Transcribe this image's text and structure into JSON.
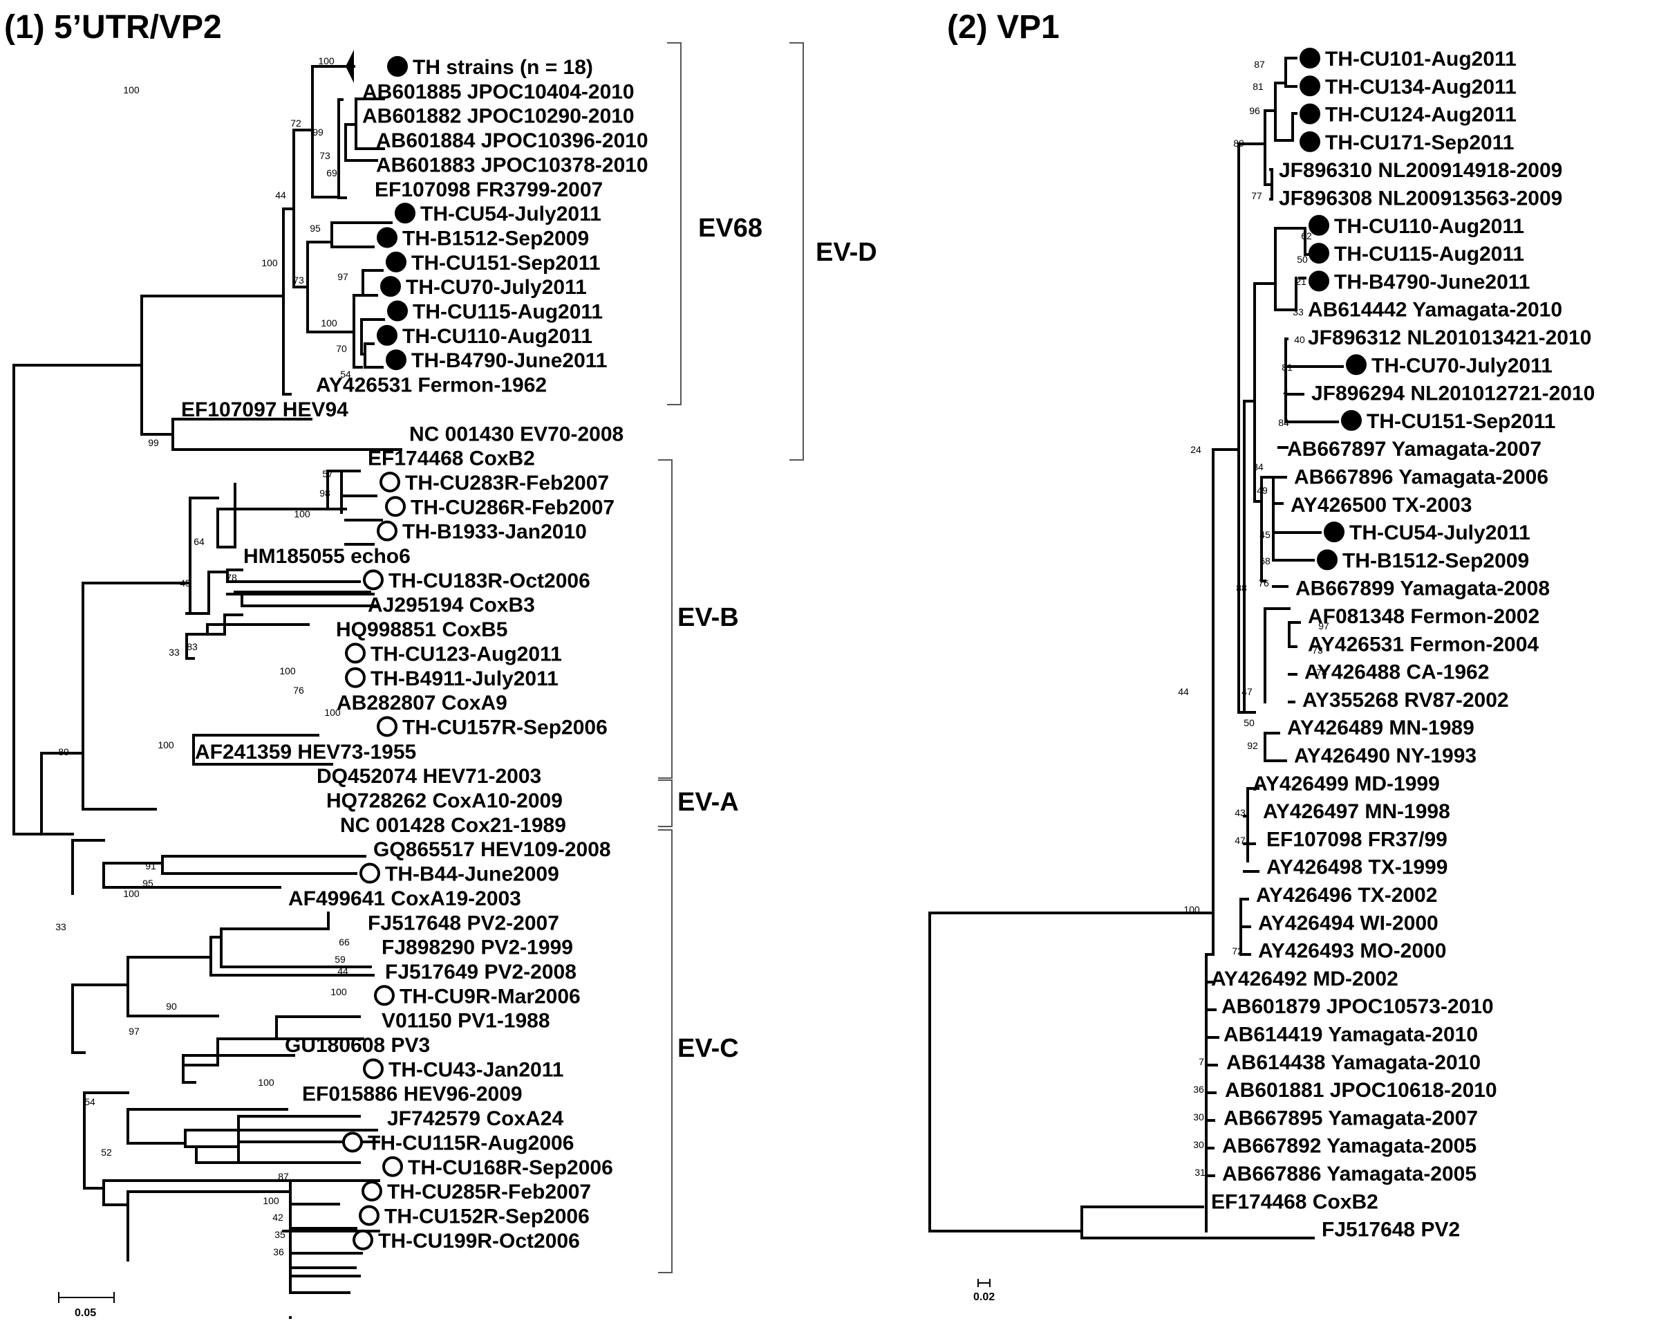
{
  "panels": [
    {
      "title": "(1) 5’UTR/VP2",
      "scale_label": "0.05",
      "tips": [
        {
          "label": "TH strains (n = 18)",
          "marker": "filled"
        },
        {
          "label": "AB601885 JPOC10404-2010",
          "marker": "none"
        },
        {
          "label": "AB601882 JPOC10290-2010",
          "marker": "none"
        },
        {
          "label": "AB601884 JPOC10396-2010",
          "marker": "none"
        },
        {
          "label": "AB601883 JPOC10378-2010",
          "marker": "none"
        },
        {
          "label": "EF107098 FR3799-2007",
          "marker": "none"
        },
        {
          "label": "TH-CU54-July2011",
          "marker": "filled"
        },
        {
          "label": "TH-B1512-Sep2009",
          "marker": "filled"
        },
        {
          "label": "TH-CU151-Sep2011",
          "marker": "filled"
        },
        {
          "label": "TH-CU70-July2011",
          "marker": "filled"
        },
        {
          "label": "TH-CU115-Aug2011",
          "marker": "filled"
        },
        {
          "label": "TH-CU110-Aug2011",
          "marker": "filled"
        },
        {
          "label": "TH-B4790-June2011",
          "marker": "filled"
        },
        {
          "label": "AY426531 Fermon-1962",
          "marker": "none"
        },
        {
          "label": "EF107097 HEV94",
          "marker": "none"
        },
        {
          "label": "NC 001430 EV70-2008",
          "marker": "none"
        },
        {
          "label": "EF174468 CoxB2",
          "marker": "none"
        },
        {
          "label": "TH-CU283R-Feb2007",
          "marker": "open"
        },
        {
          "label": "TH-CU286R-Feb2007",
          "marker": "open"
        },
        {
          "label": "TH-B1933-Jan2010",
          "marker": "open"
        },
        {
          "label": "HM185055 echo6",
          "marker": "none"
        },
        {
          "label": "TH-CU183R-Oct2006",
          "marker": "open"
        },
        {
          "label": "AJ295194 CoxB3",
          "marker": "none"
        },
        {
          "label": "HQ998851 CoxB5",
          "marker": "none"
        },
        {
          "label": "TH-CU123-Aug2011",
          "marker": "open"
        },
        {
          "label": "TH-B4911-July2011",
          "marker": "open"
        },
        {
          "label": "AB282807 CoxA9",
          "marker": "none"
        },
        {
          "label": "TH-CU157R-Sep2006",
          "marker": "open"
        },
        {
          "label": "AF241359 HEV73-1955",
          "marker": "none"
        },
        {
          "label": "DQ452074 HEV71-2003",
          "marker": "none"
        },
        {
          "label": "HQ728262 CoxA10-2009",
          "marker": "none"
        },
        {
          "label": "NC 001428 Cox21-1989",
          "marker": "none"
        },
        {
          "label": "GQ865517 HEV109-2008",
          "marker": "none"
        },
        {
          "label": "TH-B44-June2009",
          "marker": "open"
        },
        {
          "label": "AF499641 CoxA19-2003",
          "marker": "none"
        },
        {
          "label": "FJ517648 PV2-2007",
          "marker": "none"
        },
        {
          "label": "FJ898290 PV2-1999",
          "marker": "none"
        },
        {
          "label": "FJ517649 PV2-2008",
          "marker": "none"
        },
        {
          "label": "TH-CU9R-Mar2006",
          "marker": "open"
        },
        {
          "label": "V01150 PV1-1988",
          "marker": "none"
        },
        {
          "label": "GU180608 PV3",
          "marker": "none"
        },
        {
          "label": "TH-CU43-Jan2011",
          "marker": "open"
        },
        {
          "label": "EF015886 HEV96-2009",
          "marker": "none"
        },
        {
          "label": "JF742579 CoxA24",
          "marker": "none"
        },
        {
          "label": "TH-CU115R-Aug2006",
          "marker": "open"
        },
        {
          "label": "TH-CU168R-Sep2006",
          "marker": "open"
        },
        {
          "label": "TH-CU285R-Feb2007",
          "marker": "open"
        },
        {
          "label": "TH-CU152R-Sep2006",
          "marker": "open"
        },
        {
          "label": "TH-CU199R-Oct2006",
          "marker": "open"
        }
      ],
      "bootstrap": [
        "100",
        "72",
        "99",
        "73",
        "69",
        "44",
        "95",
        "100",
        "73",
        "97",
        "100",
        "70",
        "54",
        "100",
        "99",
        "57",
        "98",
        "100",
        "64",
        "78",
        "45",
        "33",
        "83",
        "100",
        "76",
        "100",
        "100",
        "89",
        "100",
        "91",
        "95",
        "33",
        "66",
        "59",
        "44",
        "100",
        "90",
        "97",
        "100",
        "54",
        "52",
        "87",
        "100",
        "42",
        "35",
        "36"
      ],
      "clades": [
        {
          "label": "EV68",
          "level": 1
        },
        {
          "label": "EV-D",
          "level": 2
        },
        {
          "label": "EV-B",
          "level": 1
        },
        {
          "label": "EV-A",
          "level": 1
        },
        {
          "label": "EV-C",
          "level": 1
        }
      ]
    },
    {
      "title": "(2) VP1",
      "scale_label": "0.02",
      "tips": [
        {
          "label": "TH-CU101-Aug2011",
          "marker": "filled"
        },
        {
          "label": "TH-CU134-Aug2011",
          "marker": "filled"
        },
        {
          "label": "TH-CU124-Aug2011",
          "marker": "filled"
        },
        {
          "label": "TH-CU171-Sep2011",
          "marker": "filled"
        },
        {
          "label": "JF896310 NL200914918-2009",
          "marker": "none"
        },
        {
          "label": "JF896308 NL200913563-2009",
          "marker": "none"
        },
        {
          "label": "TH-CU110-Aug2011",
          "marker": "filled"
        },
        {
          "label": "TH-CU115-Aug2011",
          "marker": "filled"
        },
        {
          "label": "TH-B4790-June2011",
          "marker": "filled"
        },
        {
          "label": "AB614442 Yamagata-2010",
          "marker": "none"
        },
        {
          "label": "JF896312 NL201013421-2010",
          "marker": "none"
        },
        {
          "label": "TH-CU70-July2011",
          "marker": "filled"
        },
        {
          "label": "JF896294 NL201012721-2010",
          "marker": "none"
        },
        {
          "label": "TH-CU151-Sep2011",
          "marker": "filled"
        },
        {
          "label": "AB667897 Yamagata-2007",
          "marker": "none"
        },
        {
          "label": "AB667896 Yamagata-2006",
          "marker": "none"
        },
        {
          "label": "AY426500 TX-2003",
          "marker": "none"
        },
        {
          "label": "TH-CU54-July2011",
          "marker": "filled"
        },
        {
          "label": "TH-B1512-Sep2009",
          "marker": "filled"
        },
        {
          "label": "AB667899 Yamagata-2008",
          "marker": "none"
        },
        {
          "label": "AF081348 Fermon-2002",
          "marker": "none"
        },
        {
          "label": "AY426531 Fermon-2004",
          "marker": "none"
        },
        {
          "label": "AY426488 CA-1962",
          "marker": "none"
        },
        {
          "label": "AY355268 RV87-2002",
          "marker": "none"
        },
        {
          "label": "AY426489 MN-1989",
          "marker": "none"
        },
        {
          "label": "AY426490 NY-1993",
          "marker": "none"
        },
        {
          "label": "AY426499 MD-1999",
          "marker": "none"
        },
        {
          "label": "AY426497 MN-1998",
          "marker": "none"
        },
        {
          "label": "EF107098 FR37/99",
          "marker": "none"
        },
        {
          "label": "AY426498 TX-1999",
          "marker": "none"
        },
        {
          "label": "AY426496 TX-2002",
          "marker": "none"
        },
        {
          "label": "AY426494 WI-2000",
          "marker": "none"
        },
        {
          "label": "AY426493 MO-2000",
          "marker": "none"
        },
        {
          "label": "AY426492 MD-2002",
          "marker": "none"
        },
        {
          "label": "AB601879 JPOC10573-2010",
          "marker": "none"
        },
        {
          "label": "AB614419 Yamagata-2010",
          "marker": "none"
        },
        {
          "label": "AB614438 Yamagata-2010",
          "marker": "none"
        },
        {
          "label": "AB601881 JPOC10618-2010",
          "marker": "none"
        },
        {
          "label": "AB667895 Yamagata-2007",
          "marker": "none"
        },
        {
          "label": "AB667892 Yamagata-2005",
          "marker": "none"
        },
        {
          "label": "AB667886 Yamagata-2005",
          "marker": "none"
        },
        {
          "label": "EF174468 CoxB2",
          "marker": "none"
        },
        {
          "label": "FJ517648 PV2",
          "marker": "none"
        }
      ],
      "bootstrap": [
        "87",
        "81",
        "96",
        "89",
        "77",
        "62",
        "50",
        "21",
        "33",
        "40",
        "81",
        "4",
        "84",
        "84",
        "49",
        "45",
        "68",
        "76",
        "24",
        "88",
        "97",
        "73",
        "78",
        "50",
        "92",
        "44",
        "47",
        "43",
        "47",
        "100",
        "72",
        "7",
        "36",
        "30",
        "30",
        "31"
      ],
      "clades": []
    }
  ]
}
